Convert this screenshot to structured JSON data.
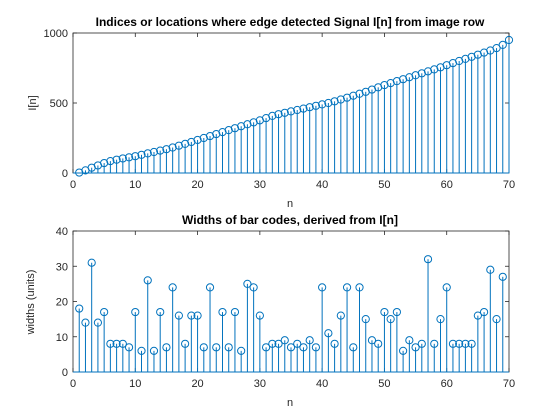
{
  "chart_data": [
    {
      "type": "stem",
      "title": "Indices or locations where edge detected Signal I[n] from image row",
      "xlabel": "n",
      "ylabel": "I[n]",
      "xlim": [
        0,
        70
      ],
      "ylim": [
        0,
        1000
      ],
      "xticks": [
        0,
        10,
        20,
        30,
        40,
        50,
        60,
        70
      ],
      "yticks": [
        0,
        500,
        1000
      ],
      "grid": false,
      "color": "#0072bd",
      "x": [
        1,
        2,
        3,
        4,
        5,
        6,
        7,
        8,
        9,
        10,
        11,
        12,
        13,
        14,
        15,
        16,
        17,
        18,
        19,
        20,
        21,
        22,
        23,
        24,
        25,
        26,
        27,
        28,
        29,
        30,
        31,
        32,
        33,
        34,
        35,
        36,
        37,
        38,
        39,
        40,
        41,
        42,
        43,
        44,
        45,
        46,
        47,
        48,
        49,
        50,
        51,
        52,
        53,
        54,
        55,
        56,
        57,
        58,
        59,
        60,
        61,
        62,
        63,
        64,
        65,
        66,
        67,
        68,
        69,
        70
      ],
      "values": [
        3,
        19,
        38,
        54,
        71,
        85,
        95,
        104,
        112,
        120,
        130,
        140,
        150,
        160,
        170,
        182,
        195,
        208,
        222,
        236,
        250,
        264,
        278,
        292,
        306,
        320,
        334,
        348,
        362,
        376,
        392,
        408,
        420,
        430,
        440,
        450,
        460,
        470,
        480,
        490,
        500,
        512,
        525,
        538,
        552,
        566,
        580,
        596,
        612,
        628,
        642,
        656,
        670,
        684,
        698,
        712,
        726,
        740,
        755,
        770,
        785,
        800,
        815,
        830,
        845,
        860,
        875,
        892,
        915,
        950
      ]
    },
    {
      "type": "stem",
      "title": "Widths of bar codes, derived from I[n]",
      "xlabel": "n",
      "ylabel": "widths (units)",
      "xlim": [
        0,
        70
      ],
      "ylim": [
        0,
        40
      ],
      "xticks": [
        0,
        10,
        20,
        30,
        40,
        50,
        60,
        70
      ],
      "yticks": [
        0,
        10,
        20,
        30,
        40
      ],
      "grid": false,
      "color": "#0072bd",
      "x": [
        1,
        2,
        3,
        4,
        5,
        6,
        7,
        8,
        9,
        10,
        11,
        12,
        13,
        14,
        15,
        16,
        17,
        18,
        19,
        20,
        21,
        22,
        23,
        24,
        25,
        26,
        27,
        28,
        29,
        30,
        31,
        32,
        33,
        34,
        35,
        36,
        37,
        38,
        39,
        40,
        41,
        42,
        43,
        44,
        45,
        46,
        47,
        48,
        49,
        50,
        51,
        52,
        53,
        54,
        55,
        56,
        57,
        58,
        59,
        60,
        61,
        62,
        63,
        64,
        65,
        66,
        67,
        68,
        69
      ],
      "values": [
        18,
        14,
        31,
        14,
        17,
        8,
        8,
        8,
        7,
        17,
        6,
        26,
        6,
        17,
        7,
        24,
        16,
        8,
        16,
        16,
        7,
        24,
        7,
        17,
        7,
        17,
        6,
        25,
        24,
        16,
        7,
        8,
        8,
        9,
        7,
        8,
        7,
        9,
        7,
        24,
        11,
        8,
        16,
        24,
        7,
        24,
        15,
        9,
        8,
        17,
        15,
        17,
        6,
        9,
        7,
        8,
        32,
        8,
        15,
        24,
        8,
        8,
        8,
        8,
        16,
        17,
        29,
        15,
        27
      ]
    }
  ]
}
